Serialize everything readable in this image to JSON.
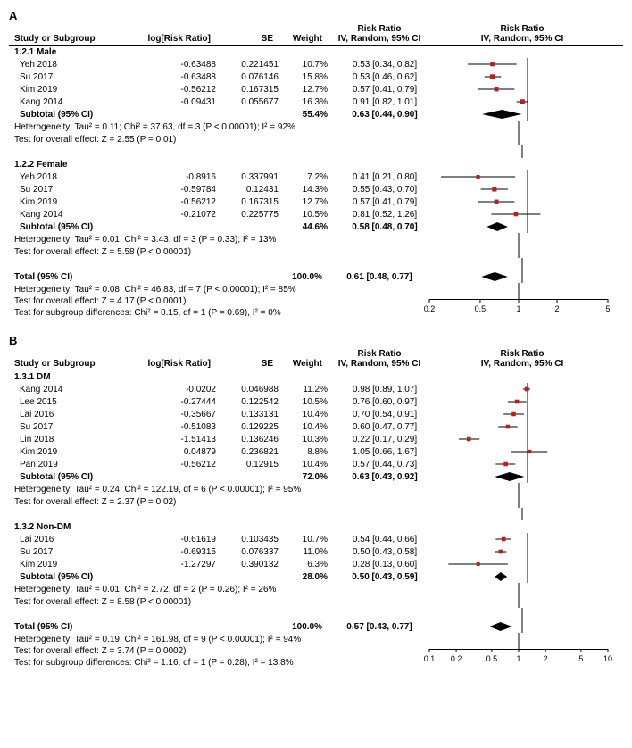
{
  "colors": {
    "marker": "#b22222",
    "line": "#000000",
    "diamond": "#000000",
    "axis": "#000000",
    "bg": "#ffffff"
  },
  "headers": {
    "study": "Study or Subgroup",
    "log": "log[Risk Ratio]",
    "se": "SE",
    "weight": "Weight",
    "ci": "IV, Random, 95% CI",
    "rr": "Risk Ratio"
  },
  "panelA": {
    "label": "A",
    "axis": {
      "min": 0.2,
      "max": 5,
      "ticks": [
        0.2,
        0.5,
        1,
        2,
        5
      ]
    },
    "groups": [
      {
        "title": "1.2.1 Male",
        "rows": [
          {
            "study": "Yeh 2018",
            "log": "-0.63488",
            "se": "0.221451",
            "wt": "10.7%",
            "ci": "0.53 [0.34, 0.82]",
            "pt": 0.53,
            "lo": 0.34,
            "hi": 0.82,
            "w": 10.7
          },
          {
            "study": "Su 2017",
            "log": "-0.63488",
            "se": "0.076146",
            "wt": "15.8%",
            "ci": "0.53 [0.46, 0.62]",
            "pt": 0.53,
            "lo": 0.46,
            "hi": 0.62,
            "w": 15.8
          },
          {
            "study": "Kim 2019",
            "log": "-0.56212",
            "se": "0.167315",
            "wt": "12.7%",
            "ci": "0.57 [0.41, 0.79]",
            "pt": 0.57,
            "lo": 0.41,
            "hi": 0.79,
            "w": 12.7
          },
          {
            "study": "Kang 2014",
            "log": "-0.09431",
            "se": "0.055677",
            "wt": "16.3%",
            "ci": "0.91 [0.82, 1.01]",
            "pt": 0.91,
            "lo": 0.82,
            "hi": 1.01,
            "w": 16.3
          }
        ],
        "subtotal": {
          "label": "Subtotal (95% CI)",
          "wt": "55.4%",
          "ci": "0.63 [0.44, 0.90]",
          "pt": 0.63,
          "lo": 0.44,
          "hi": 0.9
        },
        "het": "Heterogeneity: Tau² = 0.11; Chi² = 37.63, df = 3 (P < 0.00001); I² = 92%",
        "eff": "Test for overall effect: Z = 2.55 (P = 0.01)"
      },
      {
        "title": "1.2.2 Female",
        "rows": [
          {
            "study": "Yeh 2018",
            "log": "-0.8916",
            "se": "0.337991",
            "wt": "7.2%",
            "ci": "0.41 [0.21, 0.80]",
            "pt": 0.41,
            "lo": 0.21,
            "hi": 0.8,
            "w": 7.2
          },
          {
            "study": "Su 2017",
            "log": "-0.59784",
            "se": "0.12431",
            "wt": "14.3%",
            "ci": "0.55 [0.43, 0.70]",
            "pt": 0.55,
            "lo": 0.43,
            "hi": 0.7,
            "w": 14.3
          },
          {
            "study": "Kim 2019",
            "log": "-0.56212",
            "se": "0.167315",
            "wt": "12.7%",
            "ci": "0.57 [0.41, 0.79]",
            "pt": 0.57,
            "lo": 0.41,
            "hi": 0.79,
            "w": 12.7
          },
          {
            "study": "Kang 2014",
            "log": "-0.21072",
            "se": "0.225775",
            "wt": "10.5%",
            "ci": "0.81 [0.52, 1.26]",
            "pt": 0.81,
            "lo": 0.52,
            "hi": 1.26,
            "w": 10.5
          }
        ],
        "subtotal": {
          "label": "Subtotal (95% CI)",
          "wt": "44.6%",
          "ci": "0.58 [0.48, 0.70]",
          "pt": 0.58,
          "lo": 0.48,
          "hi": 0.7
        },
        "het": "Heterogeneity: Tau² = 0.01; Chi² = 3.43, df = 3 (P = 0.33); I² = 13%",
        "eff": "Test for overall effect: Z = 5.58 (P < 0.00001)"
      }
    ],
    "total": {
      "label": "Total (95% CI)",
      "wt": "100.0%",
      "ci": "0.61 [0.48, 0.77]",
      "pt": 0.61,
      "lo": 0.48,
      "hi": 0.77
    },
    "totHet": "Heterogeneity: Tau² = 0.08; Chi² = 46.83, df = 7 (P < 0.00001); I² = 85%",
    "totEff": "Test for overall effect: Z = 4.17 (P < 0.0001)",
    "totSub": "Test for subgroup differences: Chi² = 0.15, df = 1 (P = 0.69), I² = 0%"
  },
  "panelB": {
    "label": "B",
    "axis": {
      "min": 0.1,
      "max": 10,
      "ticks": [
        0.1,
        0.2,
        0.5,
        1,
        2,
        5,
        10
      ]
    },
    "groups": [
      {
        "title": "1.3.1 DM",
        "rows": [
          {
            "study": "Kang 2014",
            "log": "-0.0202",
            "se": "0.046988",
            "wt": "11.2%",
            "ci": "0.98 [0.89, 1.07]",
            "pt": 0.98,
            "lo": 0.89,
            "hi": 1.07,
            "w": 11.2
          },
          {
            "study": "Lee 2015",
            "log": "-0.27444",
            "se": "0.122542",
            "wt": "10.5%",
            "ci": "0.76 [0.60, 0.97]",
            "pt": 0.76,
            "lo": 0.6,
            "hi": 0.97,
            "w": 10.5
          },
          {
            "study": "Lai 2016",
            "log": "-0.35667",
            "se": "0.133131",
            "wt": "10.4%",
            "ci": "0.70 [0.54, 0.91]",
            "pt": 0.7,
            "lo": 0.54,
            "hi": 0.91,
            "w": 10.4
          },
          {
            "study": "Su 2017",
            "log": "-0.51083",
            "se": "0.129225",
            "wt": "10.4%",
            "ci": "0.60 [0.47, 0.77]",
            "pt": 0.6,
            "lo": 0.47,
            "hi": 0.77,
            "w": 10.4
          },
          {
            "study": "Lin 2018",
            "log": "-1.51413",
            "se": "0.136246",
            "wt": "10.3%",
            "ci": "0.22 [0.17, 0.29]",
            "pt": 0.22,
            "lo": 0.17,
            "hi": 0.29,
            "w": 10.3
          },
          {
            "study": "Kim 2019",
            "log": "0.04879",
            "se": "0.236821",
            "wt": "8.8%",
            "ci": "1.05 [0.66, 1.67]",
            "pt": 1.05,
            "lo": 0.66,
            "hi": 1.67,
            "w": 8.8
          },
          {
            "study": "Pan 2019",
            "log": "-0.56212",
            "se": "0.12915",
            "wt": "10.4%",
            "ci": "0.57 [0.44, 0.73]",
            "pt": 0.57,
            "lo": 0.44,
            "hi": 0.73,
            "w": 10.4
          }
        ],
        "subtotal": {
          "label": "Subtotal (95% CI)",
          "wt": "72.0%",
          "ci": "0.63 [0.43, 0.92]",
          "pt": 0.63,
          "lo": 0.43,
          "hi": 0.92
        },
        "het": "Heterogeneity: Tau² = 0.24; Chi² = 122.19, df = 6 (P < 0.00001); I² = 95%",
        "eff": "Test for overall effect: Z = 2.37 (P = 0.02)"
      },
      {
        "title": "1.3.2 Non-DM",
        "rows": [
          {
            "study": "Lai 2016",
            "log": "-0.61619",
            "se": "0.103435",
            "wt": "10.7%",
            "ci": "0.54 [0.44, 0.66]",
            "pt": 0.54,
            "lo": 0.44,
            "hi": 0.66,
            "w": 10.7
          },
          {
            "study": "Su 2017",
            "log": "-0.69315",
            "se": "0.076337",
            "wt": "11.0%",
            "ci": "0.50 [0.43, 0.58]",
            "pt": 0.5,
            "lo": 0.43,
            "hi": 0.58,
            "w": 11.0
          },
          {
            "study": "Kim 2019",
            "log": "-1.27297",
            "se": "0.390132",
            "wt": "6.3%",
            "ci": "0.28 [0.13, 0.60]",
            "pt": 0.28,
            "lo": 0.13,
            "hi": 0.6,
            "w": 6.3
          }
        ],
        "subtotal": {
          "label": "Subtotal (95% CI)",
          "wt": "28.0%",
          "ci": "0.50 [0.43, 0.59]",
          "pt": 0.5,
          "lo": 0.43,
          "hi": 0.59
        },
        "het": "Heterogeneity: Tau² = 0.01; Chi² = 2.72, df = 2 (P = 0.26); I² = 26%",
        "eff": "Test for overall effect: Z = 8.58 (P < 0.00001)"
      }
    ],
    "total": {
      "label": "Total (95% CI)",
      "wt": "100.0%",
      "ci": "0.57 [0.43, 0.77]",
      "pt": 0.57,
      "lo": 0.43,
      "hi": 0.77
    },
    "totHet": "Heterogeneity: Tau² = 0.19; Chi² = 161.98, df = 9 (P < 0.00001); I² = 94%",
    "totEff": "Test for overall effect: Z = 3.74 (P = 0.0002)",
    "totSub": "Test for subgroup differences: Chi² = 1.16, df = 1 (P = 0.28), I² = 13.8%"
  }
}
